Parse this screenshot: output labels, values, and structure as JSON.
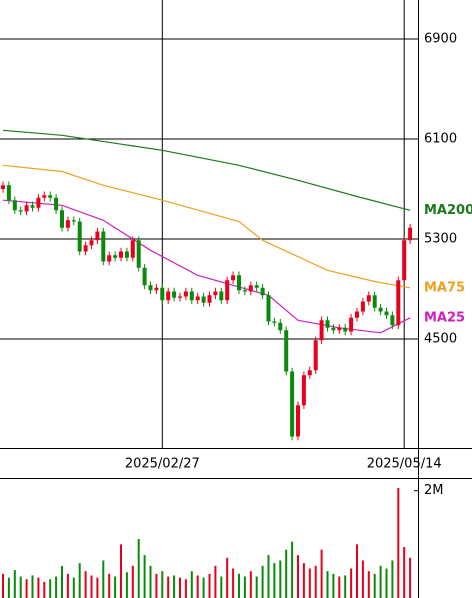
{
  "chart_data": {
    "type": "candlestick",
    "categories": [
      null,
      null,
      null,
      null,
      null,
      null,
      null,
      null,
      null,
      null,
      null,
      null,
      null,
      null,
      null,
      null,
      null,
      null,
      null,
      null,
      null,
      null,
      null,
      null,
      null,
      null,
      null,
      "2025/02/27",
      null,
      null,
      null,
      null,
      null,
      null,
      null,
      null,
      null,
      null,
      null,
      null,
      null,
      null,
      null,
      null,
      null,
      null,
      null,
      null,
      null,
      null,
      null,
      null,
      null,
      null,
      null,
      null,
      null,
      null,
      null,
      null,
      null,
      null,
      null,
      null,
      null,
      null,
      null,
      null,
      "2025/05/14",
      null
    ],
    "open": [
      5700,
      5730,
      5610,
      5530,
      5520,
      5570,
      5550,
      5630,
      5650,
      5630,
      5530,
      5390,
      5450,
      5440,
      5200,
      5250,
      5290,
      5360,
      5120,
      5170,
      5150,
      5200,
      5150,
      5290,
      5070,
      4930,
      4890,
      4910,
      4810,
      4880,
      4830,
      4840,
      4880,
      4810,
      4840,
      4790,
      4850,
      4880,
      4810,
      4970,
      5010,
      4890,
      4880,
      4930,
      4910,
      4850,
      4640,
      4630,
      4570,
      4240,
      3720,
      3970,
      4210,
      4250,
      4490,
      4650,
      4590,
      4570,
      4590,
      4560,
      4670,
      4720,
      4800,
      4850,
      4750,
      4720,
      4690,
      4610,
      4970,
      5290
    ],
    "high": [
      5760,
      5760,
      5640,
      5560,
      5600,
      5600,
      5660,
      5680,
      5680,
      5660,
      5560,
      5480,
      5480,
      5470,
      5280,
      5320,
      5390,
      5390,
      5200,
      5200,
      5230,
      5230,
      5320,
      5320,
      5100,
      4960,
      4940,
      4940,
      4910,
      4910,
      4870,
      4910,
      4910,
      4870,
      4870,
      4880,
      4910,
      4910,
      5000,
      5040,
      5040,
      4920,
      4960,
      4960,
      4940,
      4880,
      4670,
      4660,
      4600,
      4270,
      4000,
      4240,
      4280,
      4520,
      4680,
      4680,
      4620,
      4620,
      4620,
      4700,
      4750,
      4830,
      4880,
      4880,
      4780,
      4750,
      4720,
      5000,
      5320,
      5420
    ],
    "low": [
      5670,
      5580,
      5500,
      5490,
      5490,
      5520,
      5520,
      5600,
      5600,
      5500,
      5360,
      5360,
      5410,
      5170,
      5170,
      5220,
      5260,
      5090,
      5090,
      5120,
      5120,
      5120,
      5120,
      5040,
      4900,
      4860,
      4860,
      4780,
      4780,
      4800,
      4800,
      4810,
      4780,
      4780,
      4760,
      4760,
      4820,
      4780,
      4780,
      4940,
      4860,
      4850,
      4850,
      4880,
      4820,
      4610,
      4600,
      4540,
      4210,
      3690,
      3690,
      3940,
      4180,
      4220,
      4460,
      4560,
      4540,
      4540,
      4530,
      4530,
      4640,
      4690,
      4770,
      4720,
      4690,
      4660,
      4580,
      4580,
      4940,
      5260
    ],
    "close": [
      5730,
      5610,
      5530,
      5520,
      5570,
      5550,
      5630,
      5650,
      5630,
      5530,
      5390,
      5450,
      5440,
      5200,
      5250,
      5290,
      5360,
      5120,
      5170,
      5150,
      5200,
      5150,
      5290,
      5070,
      4930,
      4890,
      4910,
      4810,
      4880,
      4830,
      4840,
      4880,
      4810,
      4840,
      4790,
      4850,
      4880,
      4810,
      4970,
      5010,
      4890,
      4880,
      4930,
      4910,
      4850,
      4640,
      4630,
      4570,
      4240,
      3720,
      3970,
      4210,
      4250,
      4490,
      4650,
      4590,
      4570,
      4590,
      4560,
      4670,
      4720,
      4800,
      4850,
      4750,
      4720,
      4690,
      4610,
      4970,
      5290,
      5390
    ],
    "up_color": "#e8001c",
    "down_color": "#0a8a0a",
    "ylim": [
      3628,
      7212
    ],
    "yticks": [
      4500,
      5300,
      6100,
      6900
    ],
    "grid": true,
    "ma": [
      {
        "name": "MA200",
        "color": "#1a7a1a",
        "x": [
          0,
          10,
          27,
          40,
          50,
          60,
          69
        ],
        "values": [
          6170,
          6130,
          6010,
          5890,
          5770,
          5640,
          5530
        ]
      },
      {
        "name": "MA75",
        "color": "#f0a020",
        "x": [
          0,
          10,
          17,
          27,
          40,
          44,
          55,
          63,
          69
        ],
        "values": [
          5890,
          5840,
          5730,
          5610,
          5440,
          5290,
          5050,
          4960,
          4910
        ]
      },
      {
        "name": "MA25",
        "color": "#d020c0",
        "x": [
          0,
          10,
          17,
          25,
          33,
          39,
          45,
          50,
          57,
          64,
          69
        ],
        "values": [
          5610,
          5570,
          5450,
          5210,
          5010,
          4930,
          4850,
          4650,
          4590,
          4550,
          4670
        ]
      }
    ],
    "volume": {
      "values": [
        450000,
        380000,
        520000,
        400000,
        350000,
        420000,
        380000,
        300000,
        350000,
        400000,
        600000,
        450000,
        380000,
        650000,
        500000,
        420000,
        380000,
        700000,
        450000,
        400000,
        1000000,
        480000,
        600000,
        1100000,
        800000,
        600000,
        450000,
        500000,
        400000,
        420000,
        380000,
        350000,
        500000,
        420000,
        380000,
        450000,
        600000,
        400000,
        750000,
        550000,
        450000,
        400000,
        500000,
        400000,
        600000,
        800000,
        650000,
        700000,
        900000,
        1050000,
        800000,
        650000,
        550000,
        600000,
        900000,
        500000,
        450000,
        400000,
        420000,
        550000,
        1000000,
        700000,
        500000,
        450000,
        600000,
        550000,
        700000,
        2050000,
        950000,
        750000
      ],
      "ylim": [
        0,
        2200000
      ],
      "yticks": [
        {
          "value": 2000000,
          "label": "2M"
        }
      ]
    }
  }
}
